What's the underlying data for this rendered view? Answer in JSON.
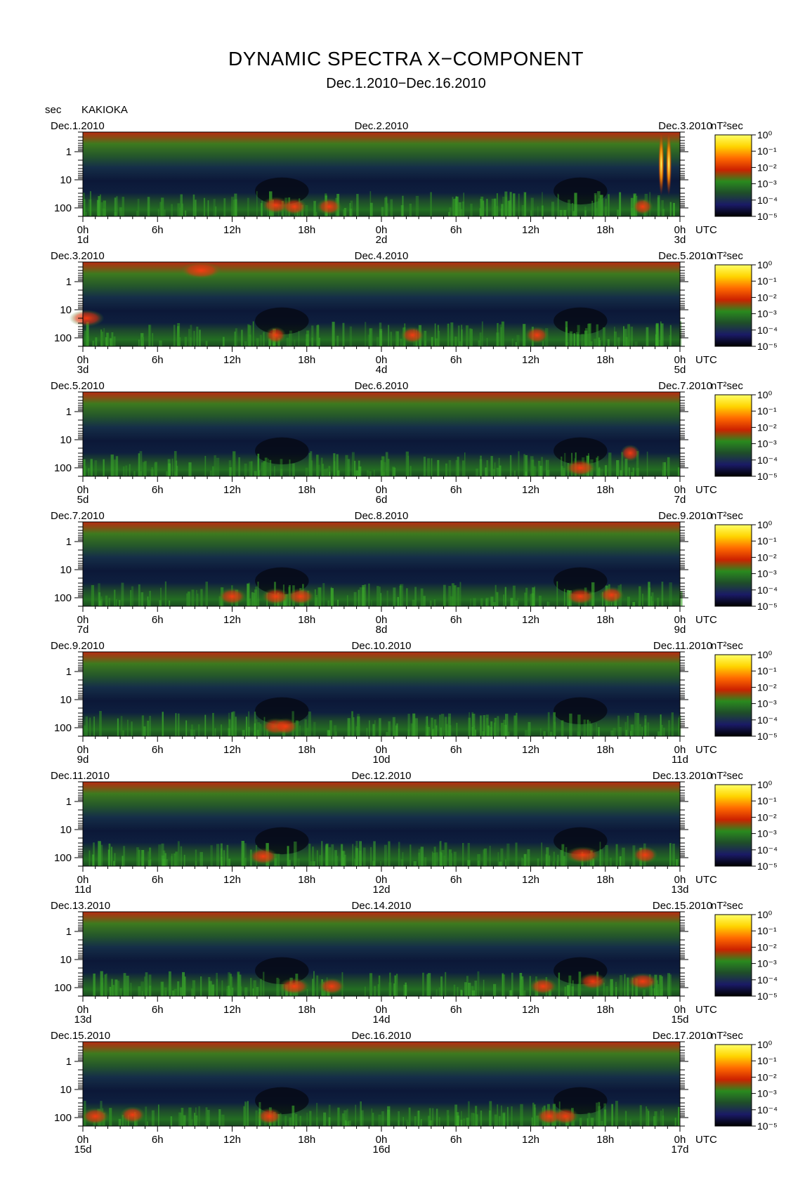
{
  "header": {
    "title": "DYNAMIC SPECTRA X−COMPONENT",
    "subtitle": "Dec.1.2010−Dec.16.2010",
    "unit_label": "sec",
    "station": "KAKIOKA"
  },
  "chart_data": {
    "type": "heatmap",
    "title": "DYNAMIC SPECTRA X−COMPONENT",
    "subtitle": "Dec.1.2010−Dec.16.2010",
    "station": "KAKIOKA",
    "ylabel": "sec",
    "y_scale": "log",
    "y_ticks": [
      "1",
      "10",
      "100"
    ],
    "y_range_sec": [
      0.2,
      200
    ],
    "x_ticks": [
      "0h",
      "6h",
      "12h",
      "18h",
      "0h",
      "6h",
      "12h",
      "18h",
      "0h"
    ],
    "x_unit": "UTC",
    "colorbar": {
      "unit": "nT²sec",
      "ticks": [
        "10⁰",
        "10⁻¹",
        "10⁻²",
        "10⁻³",
        "10⁻⁴",
        "10⁻⁵"
      ],
      "range": [
        1e-05,
        1
      ],
      "scale": "log",
      "colors": [
        "#000000",
        "#1a1a66",
        "#1f4d2a",
        "#2a8a1e",
        "#cc2200",
        "#ff6a00",
        "#ffd400",
        "#ffff66"
      ]
    },
    "panels": [
      {
        "left_date": "Dec.1.2010",
        "mid_date": "Dec.2.2010",
        "right_date": "Dec.3.2010",
        "day_labels": [
          "1d",
          "2d",
          "3d"
        ],
        "events": [
          {
            "hour": 15.5,
            "period": 80,
            "level": -3
          },
          {
            "hour": 17,
            "period": 90,
            "level": -3.2
          },
          {
            "hour": 19.8,
            "period": 90,
            "level": -3.2
          },
          {
            "hour": 45,
            "period": 90,
            "level": -3.5
          },
          {
            "hour": 46.5,
            "period": 3,
            "level": 0
          },
          {
            "hour": 47.1,
            "period": 3,
            "level": 0
          }
        ]
      },
      {
        "left_date": "Dec.3.2010",
        "mid_date": "Dec.4.2010",
        "right_date": "Dec.5.2010",
        "day_labels": [
          "3d",
          "4d",
          "5d"
        ],
        "events": [
          {
            "hour": 0.3,
            "period": 20,
            "level": -2.5
          },
          {
            "hour": 9.5,
            "period": 0.4,
            "level": -2
          },
          {
            "hour": 15.5,
            "period": 80,
            "level": -3.5
          },
          {
            "hour": 26.5,
            "period": 80,
            "level": -3.3
          },
          {
            "hour": 36.5,
            "period": 80,
            "level": -3.3
          }
        ]
      },
      {
        "left_date": "Dec.5.2010",
        "mid_date": "Dec.6.2010",
        "right_date": "Dec.7.2010",
        "day_labels": [
          "5d",
          "6d",
          "7d"
        ],
        "events": [
          {
            "hour": 40,
            "period": 100,
            "level": -2.8
          },
          {
            "hour": 44,
            "period": 30,
            "level": -3.6
          }
        ]
      },
      {
        "left_date": "Dec.7.2010",
        "mid_date": "Dec.8.2010",
        "right_date": "Dec.9.2010",
        "day_labels": [
          "7d",
          "8d",
          "9d"
        ],
        "events": [
          {
            "hour": 12,
            "period": 90,
            "level": -3
          },
          {
            "hour": 15.5,
            "period": 90,
            "level": -3
          },
          {
            "hour": 17.5,
            "period": 90,
            "level": -3
          },
          {
            "hour": 40,
            "period": 90,
            "level": -2.9
          },
          {
            "hour": 42.5,
            "period": 80,
            "level": -3.2
          }
        ]
      },
      {
        "left_date": "Dec.9.2010",
        "mid_date": "Dec.10.2010",
        "right_date": "Dec.11.2010",
        "day_labels": [
          "9d",
          "10d",
          "11d"
        ],
        "events": [
          {
            "hour": 15.5,
            "period": 90,
            "level": -3
          },
          {
            "hour": 16.3,
            "period": 90,
            "level": -3.2
          }
        ]
      },
      {
        "left_date": "Dec.11.2010",
        "mid_date": "Dec.12.2010",
        "right_date": "Dec.13.2010",
        "day_labels": [
          "11d",
          "12d",
          "13d"
        ],
        "events": [
          {
            "hour": 14.5,
            "period": 90,
            "level": -2.9
          },
          {
            "hour": 40.2,
            "period": 80,
            "level": -2.5
          },
          {
            "hour": 45.2,
            "period": 80,
            "level": -3.2
          }
        ]
      },
      {
        "left_date": "Dec.13.2010",
        "mid_date": "Dec.14.2010",
        "right_date": "Dec.15.2010",
        "day_labels": [
          "13d",
          "14d",
          "15d"
        ],
        "events": [
          {
            "hour": 17,
            "period": 90,
            "level": -2.8
          },
          {
            "hour": 20,
            "period": 90,
            "level": -3.1
          },
          {
            "hour": 37,
            "period": 90,
            "level": -3
          },
          {
            "hour": 41,
            "period": 60,
            "level": -3
          },
          {
            "hour": 45,
            "period": 60,
            "level": -2.8
          }
        ]
      },
      {
        "left_date": "Dec.15.2010",
        "mid_date": "Dec.16.2010",
        "right_date": "Dec.17.2010",
        "day_labels": [
          "15d",
          "16d",
          "17d"
        ],
        "events": [
          {
            "hour": 1,
            "period": 90,
            "level": -3
          },
          {
            "hour": 4,
            "period": 80,
            "level": -3.2
          },
          {
            "hour": 15,
            "period": 90,
            "level": -3.2
          },
          {
            "hour": 37.5,
            "period": 90,
            "level": -3.1
          },
          {
            "hour": 38.8,
            "period": 90,
            "level": -3.1
          }
        ]
      }
    ]
  }
}
